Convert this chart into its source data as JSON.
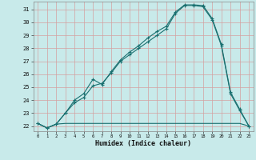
{
  "xlabel": "Humidex (Indice chaleur)",
  "bg_color": "#c8eaea",
  "grid_color": "#d4a0a0",
  "line_color": "#1a7070",
  "xlim": [
    -0.5,
    23.5
  ],
  "ylim": [
    21.6,
    31.6
  ],
  "xticks": [
    0,
    1,
    2,
    3,
    4,
    5,
    6,
    7,
    8,
    9,
    10,
    11,
    12,
    13,
    14,
    15,
    16,
    17,
    18,
    19,
    20,
    21,
    22,
    23
  ],
  "yticks": [
    22,
    23,
    24,
    25,
    26,
    27,
    28,
    29,
    30,
    31
  ],
  "series1_x": [
    0,
    1,
    2,
    3,
    4,
    5,
    6,
    7,
    8,
    9,
    10,
    11,
    12,
    13,
    14,
    15,
    16,
    17,
    18,
    19,
    20,
    21,
    22,
    23
  ],
  "series1_y": [
    22.2,
    21.85,
    22.15,
    22.2,
    22.2,
    22.2,
    22.2,
    22.2,
    22.2,
    22.2,
    22.2,
    22.2,
    22.2,
    22.2,
    22.2,
    22.2,
    22.2,
    22.2,
    22.2,
    22.2,
    22.2,
    22.2,
    22.2,
    22.0
  ],
  "series2_x": [
    0,
    1,
    2,
    3,
    4,
    5,
    6,
    7,
    8,
    9,
    10,
    11,
    12,
    13,
    14,
    15,
    16,
    17,
    18,
    19,
    20,
    21,
    22,
    23
  ],
  "series2_y": [
    22.2,
    21.85,
    22.15,
    23.0,
    23.8,
    24.2,
    25.1,
    25.3,
    26.1,
    27.0,
    27.5,
    28.0,
    28.5,
    29.0,
    29.5,
    30.7,
    31.3,
    31.3,
    31.2,
    30.2,
    28.2,
    24.5,
    23.2,
    22.0
  ],
  "series3_x": [
    0,
    1,
    2,
    3,
    4,
    5,
    6,
    7,
    8,
    9,
    10,
    11,
    12,
    13,
    14,
    15,
    16,
    17,
    18,
    19,
    20,
    21,
    22,
    23
  ],
  "series3_y": [
    22.2,
    21.85,
    22.15,
    23.0,
    24.0,
    24.5,
    25.6,
    25.2,
    26.2,
    27.1,
    27.7,
    28.2,
    28.8,
    29.3,
    29.7,
    30.8,
    31.35,
    31.35,
    31.3,
    30.3,
    28.3,
    24.6,
    23.3,
    22.0
  ]
}
